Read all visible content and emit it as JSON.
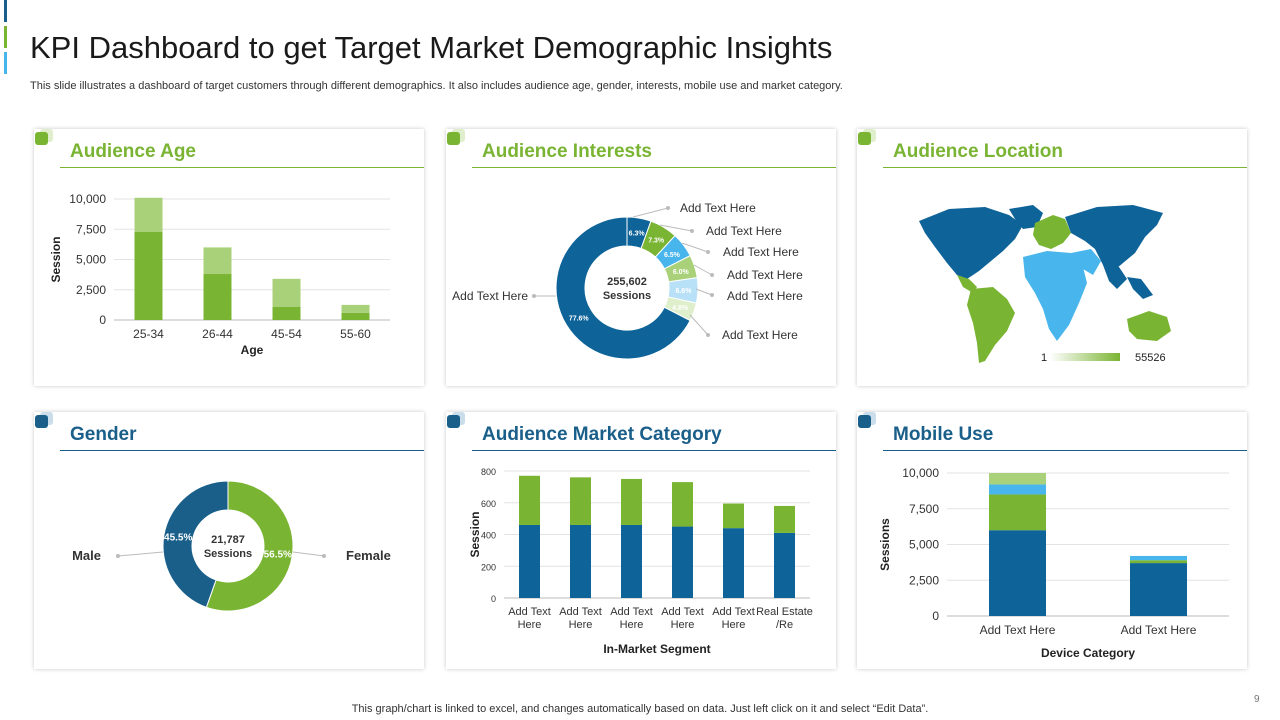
{
  "header": {
    "title": "KPI Dashboard to get Target Market Demographic Insights",
    "subtitle": "This slide illustrates a dashboard of target customers through different demographics. It also includes audience age, gender, interests, mobile use and market category."
  },
  "footer": {
    "note": "This graph/chart is linked to excel,  and changes automatically based on data. Just left click on it and select “Edit Data”.",
    "page_number": "9"
  },
  "colors": {
    "green": "#7ab433",
    "light_green": "#a9d179",
    "blue": "#0e6399",
    "dark_blue": "#1a5f8a",
    "sky": "#48b5ec"
  },
  "cards": {
    "age": {
      "title": "Audience Age"
    },
    "interests": {
      "title": "Audience Interests"
    },
    "location": {
      "title": "Audience Location"
    },
    "gender": {
      "title": "Gender"
    },
    "market": {
      "title": "Audience Market Category"
    },
    "mobile": {
      "title": "Mobile Use"
    }
  },
  "chart_data": [
    {
      "id": "age",
      "type": "bar",
      "stacked": true,
      "title": "Audience Age",
      "xlabel": "Age",
      "ylabel": "Session",
      "categories": [
        "25-34",
        "26-44",
        "45-54",
        "55-60"
      ],
      "series": [
        {
          "values": [
            7300,
            3800,
            1100,
            600
          ],
          "color": "#7ab433"
        },
        {
          "values": [
            2800,
            2200,
            2300,
            650
          ],
          "color": "#a9d179"
        }
      ],
      "ylim": [
        0,
        10000
      ],
      "yticks": [
        "0",
        "2,500",
        "5,000",
        "7,500",
        "10,000"
      ],
      "grid": true
    },
    {
      "id": "interests",
      "type": "pie",
      "donut": true,
      "center_value": "255,602",
      "center_label": "Sessions",
      "slices": [
        {
          "value": 6.3,
          "label": "6.3%",
          "color": "#0e6399",
          "callout": "Add Text Here"
        },
        {
          "value": 7.3,
          "label": "7.3%",
          "color": "#7ab433",
          "callout": "Add Text Here"
        },
        {
          "value": 6.5,
          "label": "6.5%",
          "color": "#48b5ec",
          "callout": "Add Text Here"
        },
        {
          "value": 6.0,
          "label": "6.0%",
          "color": "#a9d179",
          "callout": "Add Text Here"
        },
        {
          "value": 6.6,
          "label": "6.6%",
          "color": "#b8e1f8",
          "callout": "Add Text Here"
        },
        {
          "value": 4.8,
          "label": "4.8%",
          "color": "#dfeecb",
          "callout": "Add Text Here"
        },
        {
          "value": 77.6,
          "label": "77.6%",
          "color": "#0e6399",
          "callout": "Add Text Here"
        }
      ]
    },
    {
      "id": "location",
      "type": "heatmap",
      "title": "Audience Location",
      "legend_min": "1",
      "legend_max": "55526"
    },
    {
      "id": "gender",
      "type": "pie",
      "donut": true,
      "center_value": "21,787",
      "center_label": "Sessions",
      "slices": [
        {
          "value": 56.5,
          "label": "56.5%",
          "color": "#7ab433",
          "callout": "Female"
        },
        {
          "value": 45.5,
          "label": "45.5%",
          "color": "#1a5f8a",
          "callout": "Male"
        }
      ]
    },
    {
      "id": "market",
      "type": "bar",
      "stacked": true,
      "title": "Audience Market Category",
      "xlabel": "In-Market Segment",
      "ylabel": "Session",
      "categories": [
        "Add Text Here",
        "Add Text Here",
        "Add Text Here",
        "Add Text Here",
        "Add Text Here",
        "Real Estate /Re"
      ],
      "series": [
        {
          "values": [
            460,
            460,
            460,
            450,
            440,
            410
          ],
          "color": "#0e6399"
        },
        {
          "values": [
            310,
            300,
            290,
            280,
            155,
            170
          ],
          "color": "#7ab433"
        }
      ],
      "ylim": [
        0,
        800
      ],
      "yticks": [
        "0",
        "200",
        "400",
        "600",
        "800"
      ],
      "grid": true
    },
    {
      "id": "mobile",
      "type": "bar",
      "stacked": true,
      "title": "Mobile Use",
      "xlabel": "Device Category",
      "ylabel": "Sessions",
      "categories": [
        "Add Text Here",
        "Add Text Here"
      ],
      "series": [
        {
          "values": [
            6000,
            3700
          ],
          "color": "#0e6399"
        },
        {
          "values": [
            2500,
            200
          ],
          "color": "#7ab433"
        },
        {
          "values": [
            700,
            300
          ],
          "color": "#48b5ec"
        },
        {
          "values": [
            800,
            0
          ],
          "color": "#a9d179"
        }
      ],
      "ylim": [
        0,
        10000
      ],
      "yticks": [
        "0",
        "2,500",
        "5,000",
        "7,500",
        "10,000"
      ],
      "grid": true
    }
  ]
}
